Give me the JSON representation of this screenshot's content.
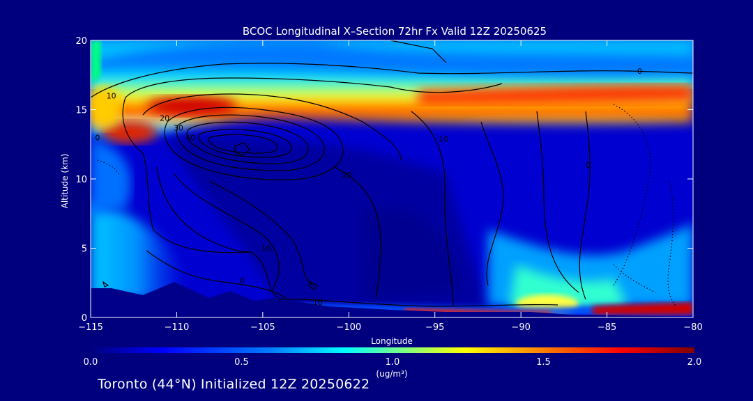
{
  "chart_data": {
    "type": "heatmap",
    "title": "BCOC Longitudinal X–Section 72hr  Fx Valid 12Z 20250625",
    "xlabel": "Longitude",
    "ylabel": "Altitude (km)",
    "xlim": [
      -115,
      -80
    ],
    "ylim": [
      0,
      20
    ],
    "x_ticks": [
      -115,
      -110,
      -105,
      -100,
      -95,
      -90,
      -85,
      -80
    ],
    "x_tick_labels": [
      "−115",
      "−110",
      "−105",
      "−100",
      "−95",
      "−90",
      "−85",
      "−80"
    ],
    "y_ticks": [
      0,
      5,
      10,
      15,
      20
    ],
    "y_tick_labels": [
      "0",
      "5",
      "10",
      "15",
      "20"
    ],
    "colorbar": {
      "min": 0.0,
      "max": 2.0,
      "ticks": [
        0.0,
        0.5,
        1.0,
        1.5,
        2.0
      ],
      "tick_labels": [
        "0.0",
        "0.5",
        "1.0",
        "1.5",
        "2.0"
      ],
      "units": "(ug/m³)",
      "colormap": [
        "#00007f",
        "#0000ff",
        "#007fff",
        "#00ffff",
        "#7fff7f",
        "#ffff00",
        "#ff7f00",
        "#ff0000",
        "#7f0000"
      ]
    },
    "contour_labels": [
      {
        "text": "10",
        "lon": -113.8,
        "alt": 15.8
      },
      {
        "text": "0",
        "lon": -114.6,
        "alt": 12.8
      },
      {
        "text": "20",
        "lon": -110.7,
        "alt": 14.2
      },
      {
        "text": "30",
        "lon": -109.9,
        "alt": 13.5
      },
      {
        "text": "40",
        "lon": -109.2,
        "alt": 12.8
      },
      {
        "text": "20",
        "lon": -100.1,
        "alt": 10.1
      },
      {
        "text": "10",
        "lon": -104.8,
        "alt": 4.8
      },
      {
        "text": "0",
        "lon": -106.2,
        "alt": 2.5
      },
      {
        "text": "10",
        "lon": -101.8,
        "alt": 0.9
      },
      {
        "text": "10",
        "lon": -94.5,
        "alt": 12.7
      },
      {
        "text": "0",
        "lon": -83.1,
        "alt": 17.6
      },
      {
        "text": "0",
        "lon": -86.1,
        "alt": 10.8
      }
    ]
  },
  "footer": "Toronto (44°N) Initialized 12Z 20250622"
}
